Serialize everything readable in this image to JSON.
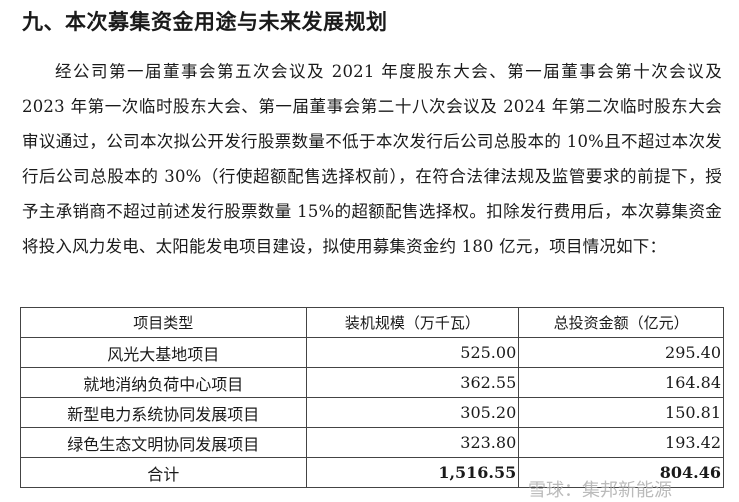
{
  "section_title": "九、本次募集资金用途与未来发展规划",
  "paragraph": "经公司第一届董事会第五次会议及 2021 年度股东大会、第一届董事会第十次会议及 2023 年第一次临时股东大会、第一届董事会第二十八次会议及 2024 年第二次临时股东大会审议通过，公司本次拟公开发行股票数量不低于本次发行后公司总股本的 10%且不超过本次发行后公司总股本的 30%（行使超额配售选择权前），在符合法律法规及监管要求的前提下，授予主承销商不超过前述发行股票数量 15%的超额配售选择权。扣除发行费用后，本次募集资金将投入风力发电、太阳能发电项目建设，拟使用募集资金约 180 亿元，项目情况如下：",
  "table": {
    "headers": [
      "项目类型",
      "装机规模（万千瓦）",
      "总投资金额（亿元）"
    ],
    "rows": [
      {
        "name": "风光大基地项目",
        "capacity": "525.00",
        "investment": "295.40"
      },
      {
        "name": "就地消纳负荷中心项目",
        "capacity": "362.55",
        "investment": "164.84"
      },
      {
        "name": "新型电力系统协同发展项目",
        "capacity": "305.20",
        "investment": "150.81"
      },
      {
        "name": "绿色生态文明协同发展项目",
        "capacity": "323.80",
        "investment": "193.42"
      }
    ],
    "total": {
      "name": "合计",
      "capacity": "1,516.55",
      "investment": "804.46"
    }
  },
  "watermark": "雪球：集邦新能源"
}
